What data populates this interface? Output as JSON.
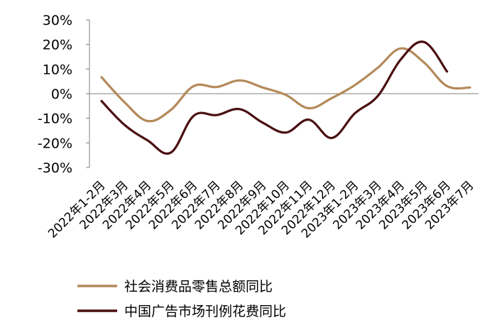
{
  "chart_data": {
    "type": "line",
    "categories": [
      "2022年1-2月",
      "2022年3月",
      "2022年4月",
      "2022年5月",
      "2022年6月",
      "2022年7月",
      "2022年8月",
      "2022年9月",
      "2022年10月",
      "2022年11月",
      "2022年12月",
      "2023年1-2月",
      "2023年3月",
      "2023年4月",
      "2023年5月",
      "2023年6月",
      "2023年7月"
    ],
    "y_tick_labels": [
      "30%",
      "20%",
      "10%",
      "0%",
      "-10%",
      "-20%",
      "-30%"
    ],
    "ylim": [
      -30,
      30
    ],
    "legend_position": "bottom",
    "grid": false,
    "series": [
      {
        "name": "社会消费品零售总额同比",
        "color": "#b48a5a",
        "values": [
          6.7,
          -3.5,
          -11.1,
          -6.7,
          3.1,
          2.7,
          5.4,
          2.5,
          -0.5,
          -5.9,
          -1.8,
          3.5,
          10.6,
          18.4,
          12.7,
          3.1,
          2.5
        ]
      },
      {
        "name": "中国广告市场刊例花费同比",
        "color": "#4a0f12",
        "values": [
          -3.0,
          -12.7,
          -19.0,
          -24.0,
          -9.0,
          -8.7,
          -6.3,
          -11.8,
          -15.8,
          -10.6,
          -18.0,
          -8.0,
          -0.9,
          14.0,
          21.0,
          9.0,
          null
        ]
      }
    ]
  }
}
